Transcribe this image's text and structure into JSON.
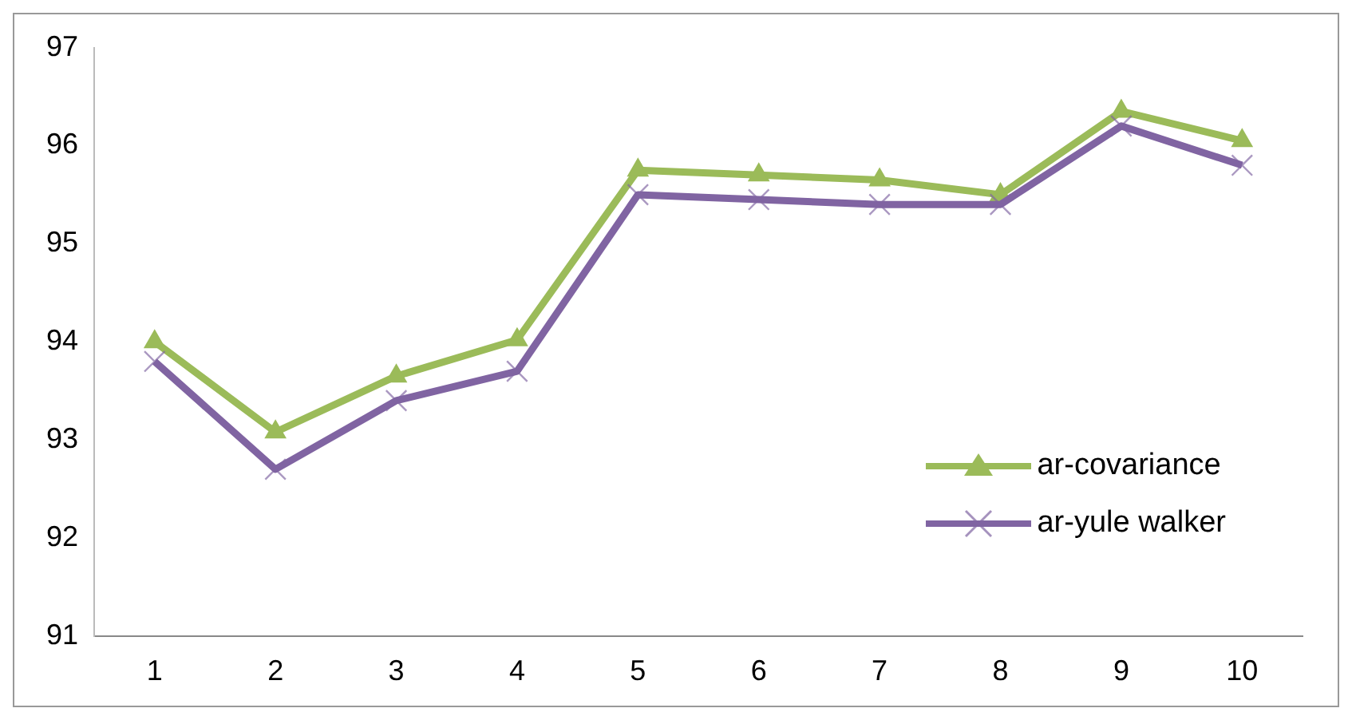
{
  "chart_data": {
    "type": "line",
    "categories": [
      "1",
      "2",
      "3",
      "4",
      "5",
      "6",
      "7",
      "8",
      "9",
      "10"
    ],
    "series": [
      {
        "name": "ar-covariance",
        "color": "#9bbb59",
        "marker": "triangle",
        "values": [
          94.0,
          93.08,
          93.65,
          94.02,
          95.75,
          95.7,
          95.65,
          95.5,
          96.35,
          96.05
        ]
      },
      {
        "name": "ar-yule walker",
        "color": "#8064a2",
        "marker": "cross",
        "values": [
          93.8,
          92.7,
          93.4,
          93.7,
          95.5,
          95.45,
          95.4,
          95.4,
          96.2,
          95.8
        ]
      }
    ],
    "ylim": [
      91,
      97
    ],
    "yticks": [
      91,
      92,
      93,
      94,
      95,
      96,
      97
    ],
    "grid": false,
    "legend": "right",
    "line_style": "solid"
  }
}
